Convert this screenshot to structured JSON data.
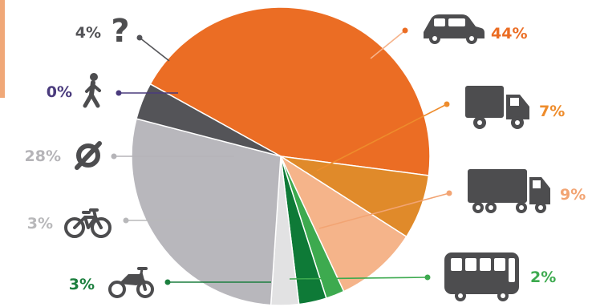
{
  "page": {
    "accent_color": "#F0A878"
  },
  "chart_data": {
    "type": "pie",
    "title": "",
    "slices": [
      {
        "label": "44%",
        "value": 44,
        "icon": "car-icon",
        "color": "#EB6D24",
        "label_color": "#EB6D24"
      },
      {
        "label": "7%",
        "value": 7,
        "icon": "truck-icon",
        "color": "#E08A2A",
        "label_color": "#EE8C2C"
      },
      {
        "label": "9%",
        "value": 9,
        "icon": "lorry-icon",
        "color": "#F5B48A",
        "label_color": "#F2A473"
      },
      {
        "label": "2%",
        "value": 2,
        "icon": "bus-icon",
        "color": "#3DAA4F",
        "label_color": "#3DAA4F"
      },
      {
        "label": "3%",
        "value": 3,
        "icon": "motorcycle-icon",
        "color": "#0E7A37",
        "label_color": "#1C7F3E"
      },
      {
        "label": "3%",
        "value": 3,
        "icon": "bicycle-icon",
        "color": "#E2E2E3",
        "label_color": "#B8B8BA"
      },
      {
        "label": "28%",
        "value": 28,
        "icon": "no-trip-icon",
        "color": "#B8B7BC",
        "label_color": "#B5B4B8"
      },
      {
        "label": "0%",
        "value": 0,
        "icon": "pedestrian-icon",
        "color": "#4A3B7D",
        "label_color": "#4A3B7D"
      },
      {
        "label": "4%",
        "value": 4,
        "icon": "unknown-icon",
        "color": "#545458",
        "label_color": "#545458"
      }
    ]
  }
}
